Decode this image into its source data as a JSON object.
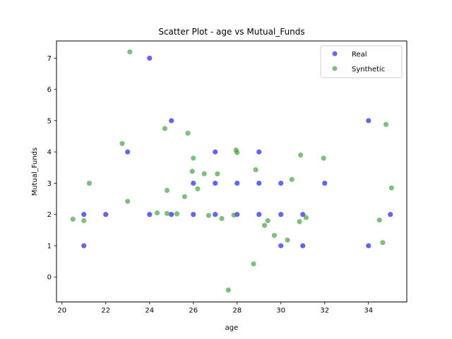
{
  "chart_data": {
    "type": "scatter",
    "title": "Scatter Plot - age vs Mutual_Funds",
    "xlabel": "age",
    "ylabel": "Mutual_Funds",
    "xlim": [
      19.75,
      35.75
    ],
    "ylim": [
      -0.8,
      7.55
    ],
    "xticks": [
      20,
      22,
      24,
      26,
      28,
      30,
      32,
      34
    ],
    "yticks": [
      0,
      1,
      2,
      3,
      4,
      5,
      6,
      7
    ],
    "legend_position": "top-right",
    "series": [
      {
        "name": "Real",
        "color": "#0000dd",
        "points": [
          [
            21,
            2
          ],
          [
            21,
            1
          ],
          [
            22,
            2
          ],
          [
            23,
            4
          ],
          [
            24,
            7
          ],
          [
            24,
            2
          ],
          [
            25,
            5
          ],
          [
            25,
            2
          ],
          [
            26,
            3
          ],
          [
            26,
            2
          ],
          [
            27,
            4
          ],
          [
            27,
            3
          ],
          [
            27,
            2
          ],
          [
            28,
            3
          ],
          [
            28,
            2
          ],
          [
            29,
            4
          ],
          [
            29,
            3
          ],
          [
            29,
            2
          ],
          [
            30,
            3
          ],
          [
            30,
            2
          ],
          [
            30,
            1
          ],
          [
            31,
            2
          ],
          [
            31,
            1
          ],
          [
            32,
            3
          ],
          [
            34,
            5
          ],
          [
            34,
            1
          ],
          [
            35,
            2
          ]
        ]
      },
      {
        "name": "Synthetic",
        "color": "#2a922a",
        "points": [
          [
            20.5,
            1.85
          ],
          [
            21,
            1.8
          ],
          [
            21.25,
            3
          ],
          [
            22.75,
            4.27
          ],
          [
            23,
            2.42
          ],
          [
            23.1,
            7.2
          ],
          [
            24.35,
            2.05
          ],
          [
            24.7,
            4.75
          ],
          [
            24.8,
            2.77
          ],
          [
            24.8,
            2.03
          ],
          [
            25.25,
            2.02
          ],
          [
            25.6,
            2.57
          ],
          [
            25.75,
            4.6
          ],
          [
            25.95,
            3.38
          ],
          [
            26,
            3.8
          ],
          [
            26.2,
            2.82
          ],
          [
            26.5,
            3.3
          ],
          [
            26.7,
            1.97
          ],
          [
            27.1,
            3.3
          ],
          [
            27.3,
            1.87
          ],
          [
            27.6,
            -0.42
          ],
          [
            27.85,
            1.98
          ],
          [
            27.95,
            4.06
          ],
          [
            28,
            3.98
          ],
          [
            28.75,
            0.42
          ],
          [
            28.85,
            3.43
          ],
          [
            29.25,
            1.65
          ],
          [
            29.4,
            1.8
          ],
          [
            29.7,
            1.33
          ],
          [
            30.3,
            1.18
          ],
          [
            30.5,
            3.12
          ],
          [
            30.85,
            1.77
          ],
          [
            30.9,
            3.9
          ],
          [
            31.15,
            1.9
          ],
          [
            31.95,
            3.8
          ],
          [
            34.5,
            1.82
          ],
          [
            34.65,
            1.1
          ],
          [
            34.8,
            4.88
          ],
          [
            35.05,
            2.85
          ]
        ]
      }
    ]
  }
}
